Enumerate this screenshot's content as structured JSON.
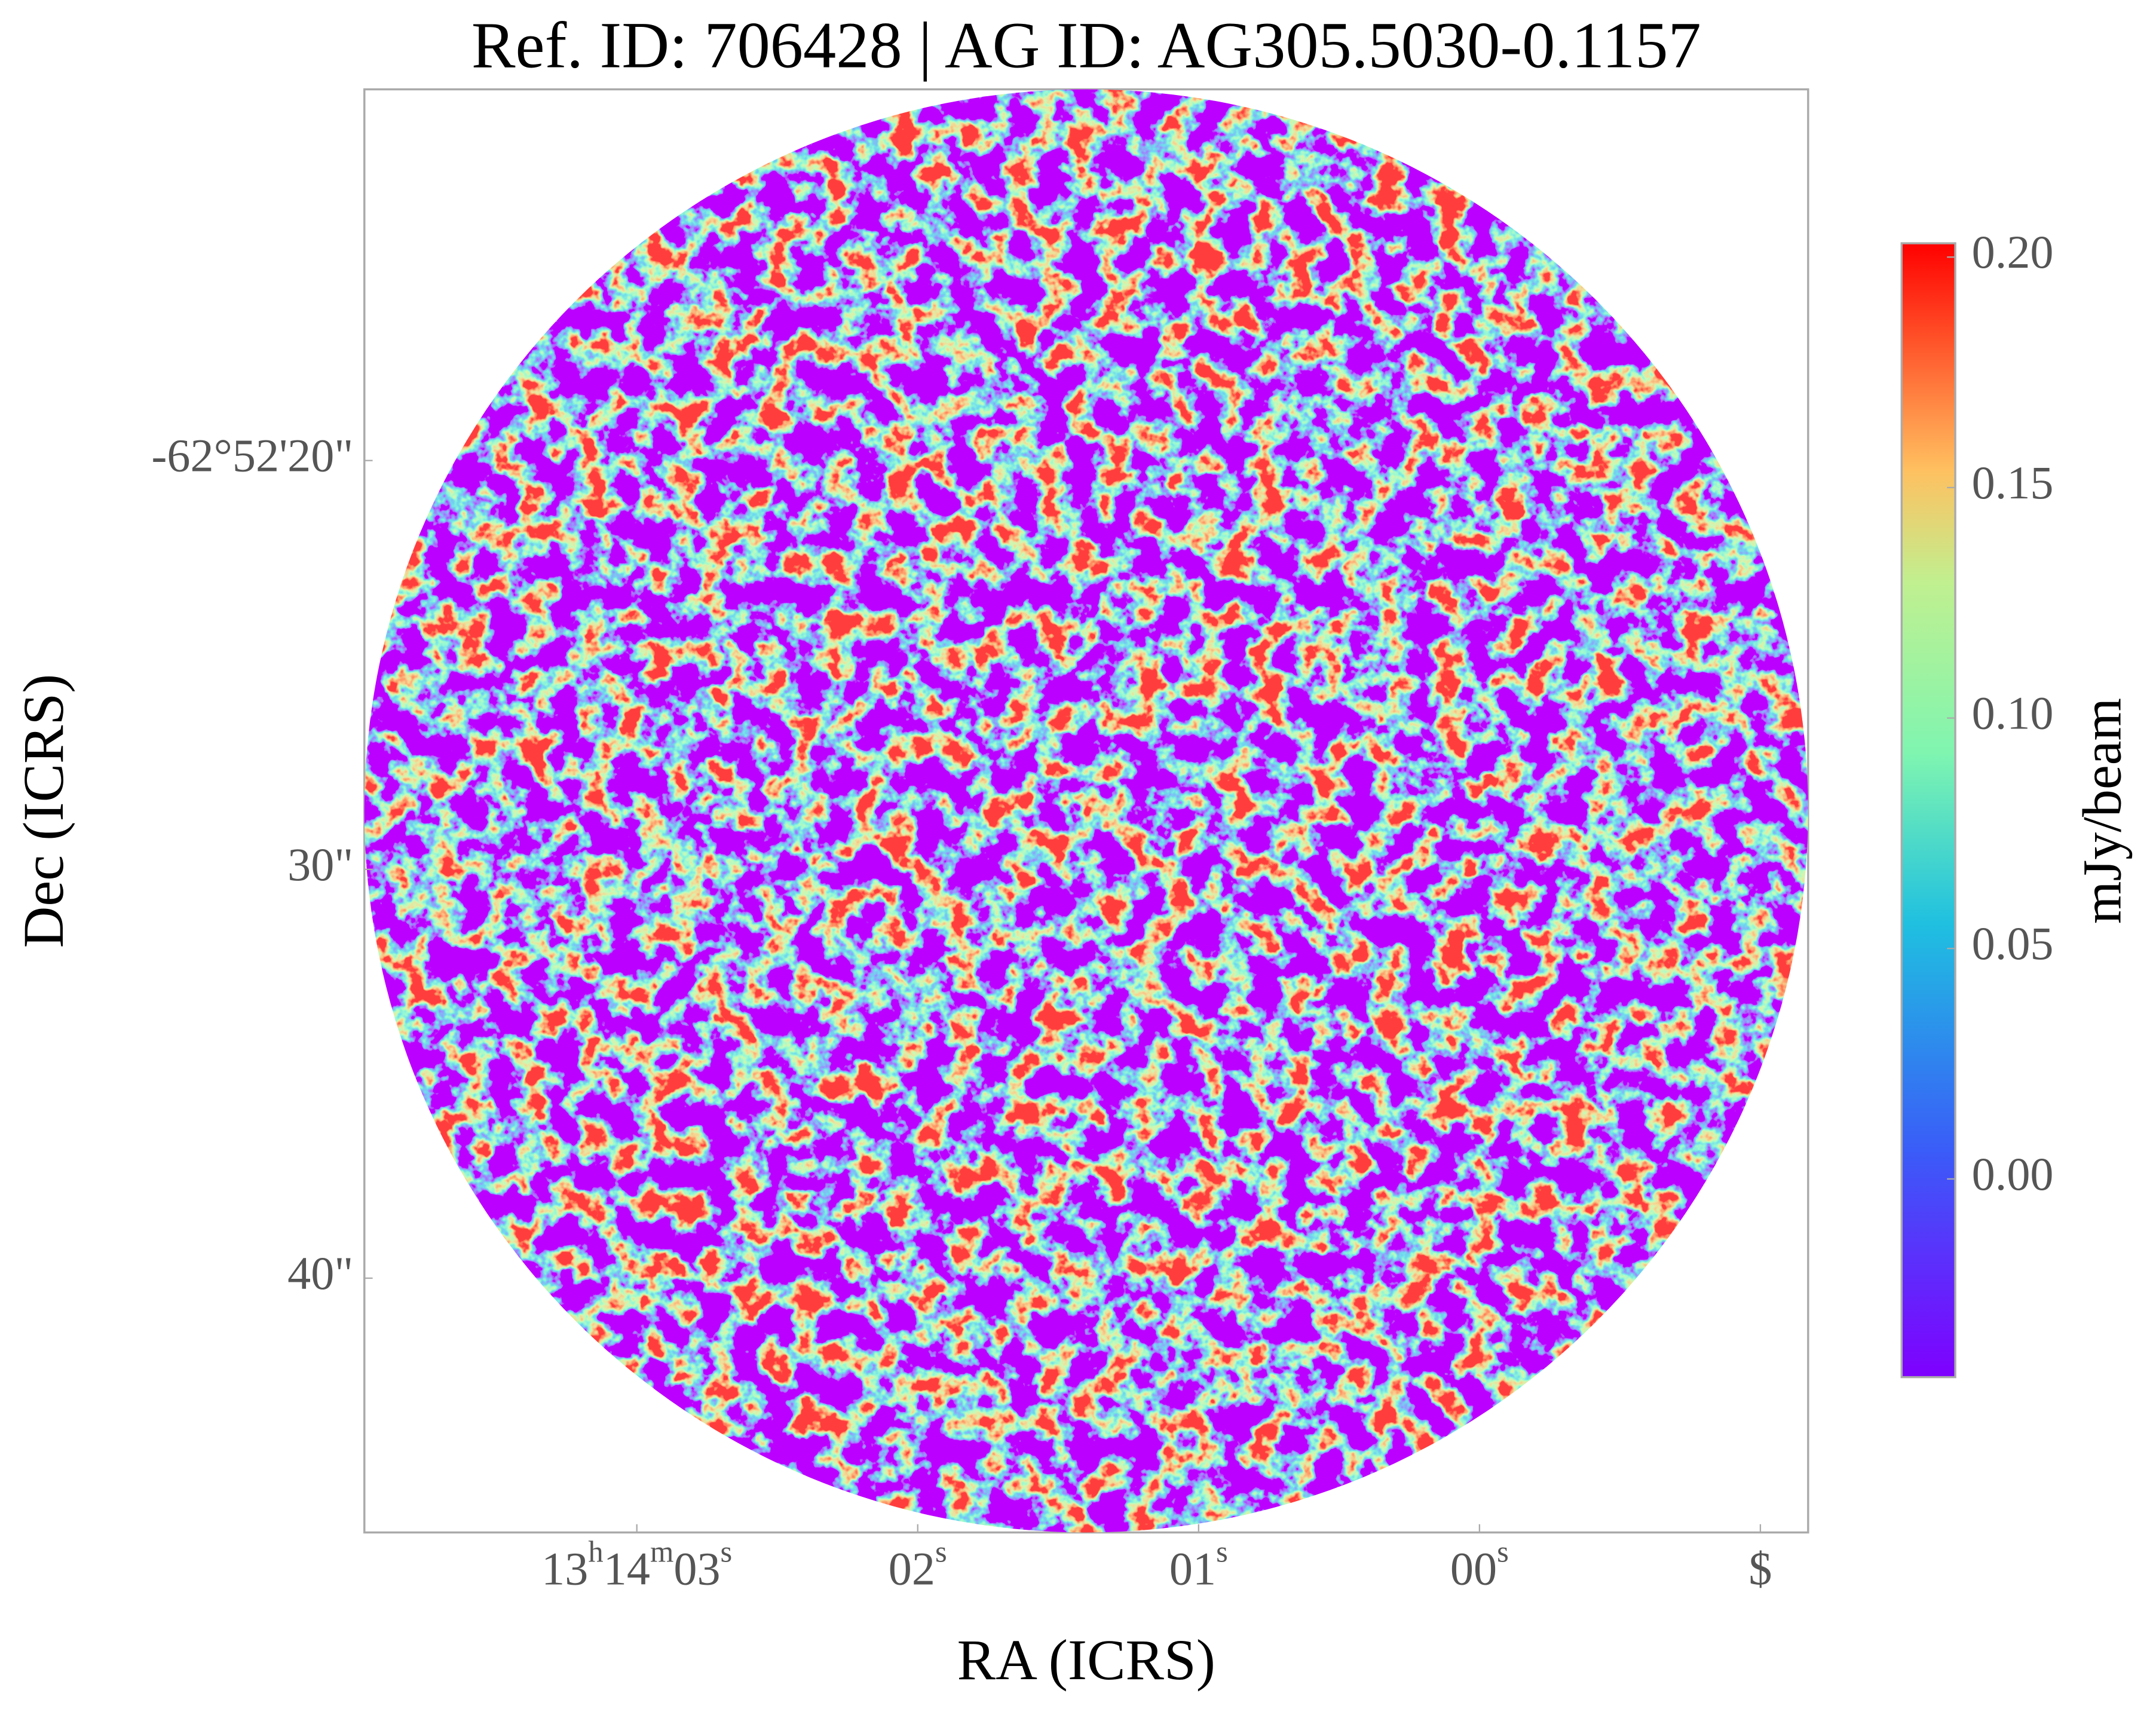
{
  "chart_data": {
    "type": "image",
    "title": "Ref. ID: 706428 | AG ID: AG305.5030-0.1157",
    "xlabel": "RA (ICRS)",
    "ylabel": "Dec (ICRS)",
    "xlim": [
      3.97,
      -1.17
    ],
    "xticks": [
      {
        "value": 3,
        "label": [
          "13",
          "h",
          "14",
          "m",
          "03",
          "s"
        ]
      },
      {
        "value": 2,
        "label": [
          "02",
          "s"
        ]
      },
      {
        "value": 1,
        "label": [
          "01",
          "s"
        ]
      },
      {
        "value": 0,
        "label": [
          "00",
          "s"
        ]
      },
      {
        "value": -1,
        "label": [
          "$"
        ]
      }
    ],
    "ylim": [
      46.22,
      10.92
    ],
    "yticks": [
      {
        "value": 20,
        "label": "-62°52'20\""
      },
      {
        "value": 30,
        "label": "30\""
      },
      {
        "value": 40,
        "label": "40\""
      }
    ],
    "colormap": "rainbow",
    "colorbar": {
      "label": "mJy/beam",
      "clim": [
        -0.043,
        0.203
      ],
      "ticks": [
        {
          "value": 0,
          "label": "0.00"
        },
        0.05,
        {
          "value": 0.1,
          "label": "0.10"
        },
        0.15,
        {
          "value": 0.2,
          "label": "0.20"
        }
      ]
    }
  }
}
